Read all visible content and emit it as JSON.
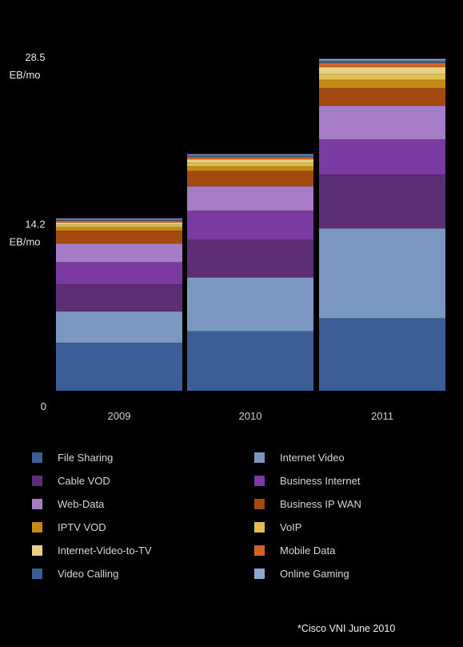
{
  "chart_data": {
    "type": "bar",
    "stacked": true,
    "categories": [
      "2009",
      "2010",
      "2011"
    ],
    "y_ticks": [
      {
        "value": 0,
        "label": "0",
        "unit": ""
      },
      {
        "value": 14.2,
        "label": "14.2",
        "unit": "EB/mo"
      },
      {
        "value": 28.5,
        "label": "28.5",
        "unit": "EB/mo"
      }
    ],
    "ylim": [
      0,
      28.5
    ],
    "grid": false,
    "legend_position": "bottom",
    "series": [
      {
        "name": "File Sharing",
        "color": "#3b5e96",
        "values": [
          4.1,
          5.1,
          6.2
        ]
      },
      {
        "name": "Internet Video",
        "color": "#7a97c2",
        "values": [
          2.7,
          4.6,
          7.7
        ]
      },
      {
        "name": "Cable VOD",
        "color": "#5d2e74",
        "values": [
          2.3,
          3.2,
          4.6
        ]
      },
      {
        "name": "Business Internet",
        "color": "#7a3aa2",
        "values": [
          1.9,
          2.5,
          3.0
        ]
      },
      {
        "name": "Web-Data",
        "color": "#a67cc7",
        "values": [
          1.6,
          2.1,
          2.9
        ]
      },
      {
        "name": "Business IP WAN",
        "color": "#a34a0e",
        "values": [
          1.1,
          1.3,
          1.5
        ]
      },
      {
        "name": "IPTV VOD",
        "color": "#c48a14",
        "values": [
          0.3,
          0.4,
          0.7
        ]
      },
      {
        "name": "VoIP",
        "color": "#e0bf4c",
        "values": [
          0.2,
          0.3,
          0.5
        ]
      },
      {
        "name": "Internet-Video-to-TV",
        "color": "#e8cf88",
        "values": [
          0.2,
          0.3,
          0.6
        ]
      },
      {
        "name": "Mobile Data",
        "color": "#d56424",
        "values": [
          0.15,
          0.2,
          0.35
        ]
      },
      {
        "name": "Video Calling",
        "color": "#3b5e96",
        "values": [
          0.1,
          0.15,
          0.2
        ]
      },
      {
        "name": "Online Gaming",
        "color": "#8fa6cf",
        "values": [
          0.1,
          0.1,
          0.15
        ]
      }
    ]
  },
  "legend": {
    "items": [
      {
        "label": "File Sharing",
        "color": "#3b5e96"
      },
      {
        "label": "Internet Video",
        "color": "#7a97c2"
      },
      {
        "label": "Cable VOD",
        "color": "#5d2e74"
      },
      {
        "label": "Business Internet",
        "color": "#7a3aa2"
      },
      {
        "label": "Web-Data",
        "color": "#a67cc7"
      },
      {
        "label": "Business IP WAN",
        "color": "#a34a0e"
      },
      {
        "label": "IPTV VOD",
        "color": "#c48a14"
      },
      {
        "label": "VoIP",
        "color": "#e0bf4c"
      },
      {
        "label": "Internet-Video-to-TV",
        "color": "#e8cf88"
      },
      {
        "label": "Mobile Data",
        "color": "#d56424"
      },
      {
        "label": "Video Calling",
        "color": "#3b5e96"
      },
      {
        "label": "Online Gaming",
        "color": "#8fa6cf"
      }
    ]
  },
  "source_note": "*Cisco VNI June 2010"
}
